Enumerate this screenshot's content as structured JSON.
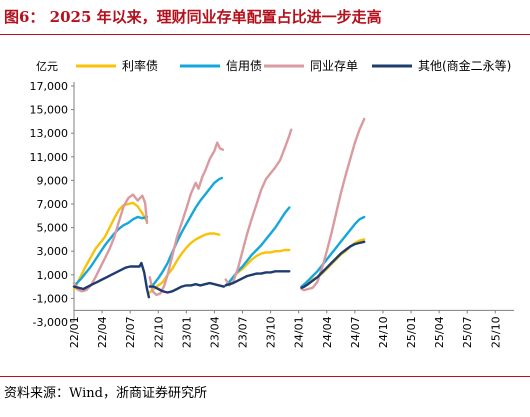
{
  "figure": {
    "title": "图6：  2025 年以来，理财同业存单配置占比进一步走高",
    "source": "资料来源：Wind，浙商证券研究所"
  },
  "chart_data": {
    "type": "line",
    "title": "",
    "ylabel": "亿元",
    "xlabel": "",
    "ylim": [
      -3000,
      17000
    ],
    "y_ticks": [
      "-3,000",
      "-1,000",
      "1,000",
      "3,000",
      "5,000",
      "7,000",
      "9,000",
      "11,000",
      "13,000",
      "15,000",
      "17,000"
    ],
    "x_ticks": [
      "22/01",
      "22/04",
      "22/07",
      "22/10",
      "23/01",
      "23/04",
      "23/07",
      "23/10",
      "24/01",
      "24/04",
      "24/07",
      "24/10",
      "25/01",
      "25/04",
      "25/07",
      "25/10"
    ],
    "x_range": [
      "2022-01",
      "2025-12"
    ],
    "legend_position": "top",
    "grid": false,
    "series": [
      {
        "name": "利率债",
        "color": "#f9c20a",
        "segments": [
          [
            [
              0,
              -200
            ],
            [
              0.3,
              200
            ],
            [
              0.8,
              1000
            ],
            [
              1.3,
              1800
            ],
            [
              1.8,
              2500
            ],
            [
              2.3,
              3200
            ],
            [
              2.8,
              3700
            ],
            [
              3.3,
              4200
            ],
            [
              3.8,
              5000
            ],
            [
              4.3,
              5800
            ],
            [
              4.8,
              6500
            ],
            [
              5.3,
              6900
            ],
            [
              5.8,
              7000
            ],
            [
              6.3,
              7100
            ],
            [
              6.8,
              6800
            ],
            [
              7.3,
              6200
            ],
            [
              7.8,
              5500
            ]
          ],
          [
            [
              8.1,
              -500
            ],
            [
              8.5,
              -200
            ],
            [
              9,
              100
            ],
            [
              9.5,
              400
            ],
            [
              10,
              1000
            ],
            [
              10.5,
              1500
            ],
            [
              11,
              2200
            ],
            [
              11.5,
              2800
            ],
            [
              12,
              3300
            ],
            [
              12.5,
              3700
            ],
            [
              13,
              4000
            ],
            [
              13.5,
              4200
            ],
            [
              14,
              4400
            ],
            [
              14.5,
              4500
            ],
            [
              15,
              4500
            ],
            [
              15.5,
              4400
            ]
          ],
          [
            [
              16.2,
              100
            ],
            [
              16.6,
              400
            ],
            [
              17,
              800
            ],
            [
              17.5,
              1200
            ],
            [
              18,
              1500
            ],
            [
              18.5,
              1900
            ],
            [
              19,
              2300
            ],
            [
              19.5,
              2600
            ],
            [
              20,
              2800
            ],
            [
              20.5,
              2900
            ],
            [
              21,
              2900
            ],
            [
              21.5,
              3000
            ],
            [
              22,
              3000
            ],
            [
              22.5,
              3100
            ],
            [
              23,
              3100
            ]
          ],
          [
            [
              24.3,
              -50
            ],
            [
              24.6,
              100
            ],
            [
              25,
              300
            ],
            [
              25.5,
              600
            ],
            [
              26,
              800
            ],
            [
              26.5,
              1100
            ],
            [
              27,
              1500
            ],
            [
              27.5,
              1900
            ],
            [
              28,
              2300
            ],
            [
              28.5,
              2700
            ],
            [
              29,
              3000
            ],
            [
              29.5,
              3400
            ],
            [
              30,
              3700
            ],
            [
              30.5,
              3900
            ],
            [
              31,
              4000
            ]
          ]
        ]
      },
      {
        "name": "信用债",
        "color": "#14a7dc",
        "segments": [
          [
            [
              0,
              0
            ],
            [
              0.3,
              300
            ],
            [
              0.8,
              700
            ],
            [
              1.3,
              1200
            ],
            [
              1.8,
              1700
            ],
            [
              2.3,
              2300
            ],
            [
              2.8,
              2900
            ],
            [
              3.3,
              3500
            ],
            [
              3.8,
              4000
            ],
            [
              4.3,
              4500
            ],
            [
              4.8,
              4900
            ],
            [
              5.3,
              5200
            ],
            [
              5.8,
              5400
            ],
            [
              6.3,
              5700
            ],
            [
              6.8,
              5900
            ],
            [
              7.3,
              5800
            ],
            [
              7.8,
              5900
            ]
          ],
          [
            [
              8.1,
              0
            ],
            [
              8.5,
              200
            ],
            [
              9,
              700
            ],
            [
              9.5,
              1300
            ],
            [
              10,
              2000
            ],
            [
              10.5,
              2900
            ],
            [
              11,
              3800
            ],
            [
              11.5,
              4600
            ],
            [
              12,
              5300
            ],
            [
              12.5,
              6000
            ],
            [
              13,
              6700
            ],
            [
              13.5,
              7300
            ],
            [
              14,
              7800
            ],
            [
              14.5,
              8300
            ],
            [
              15,
              8800
            ],
            [
              15.5,
              9100
            ],
            [
              15.8,
              9200
            ]
          ],
          [
            [
              16.2,
              100
            ],
            [
              16.6,
              400
            ],
            [
              17,
              800
            ],
            [
              17.5,
              1300
            ],
            [
              18,
              1700
            ],
            [
              18.5,
              2200
            ],
            [
              19,
              2700
            ],
            [
              19.5,
              3100
            ],
            [
              20,
              3500
            ],
            [
              20.5,
              4000
            ],
            [
              21,
              4500
            ],
            [
              21.5,
              5000
            ],
            [
              22,
              5600
            ],
            [
              22.5,
              6200
            ],
            [
              23,
              6700
            ]
          ],
          [
            [
              24.3,
              0
            ],
            [
              24.6,
              200
            ],
            [
              25,
              500
            ],
            [
              25.5,
              900
            ],
            [
              26,
              1300
            ],
            [
              26.5,
              1800
            ],
            [
              27,
              2300
            ],
            [
              27.5,
              2800
            ],
            [
              28,
              3300
            ],
            [
              28.5,
              3800
            ],
            [
              29,
              4300
            ],
            [
              29.5,
              4800
            ],
            [
              30,
              5300
            ],
            [
              30.5,
              5700
            ],
            [
              31,
              5900
            ]
          ]
        ]
      },
      {
        "name": "同业存单",
        "color": "#d99aa0",
        "segments": [
          [
            [
              0,
              300
            ],
            [
              0.3,
              -200
            ],
            [
              0.8,
              -400
            ],
            [
              1.3,
              -300
            ],
            [
              1.8,
              100
            ],
            [
              2.3,
              800
            ],
            [
              2.8,
              1600
            ],
            [
              3.3,
              2400
            ],
            [
              3.8,
              3200
            ],
            [
              4.3,
              4200
            ],
            [
              4.8,
              5500
            ],
            [
              5.3,
              6800
            ],
            [
              5.8,
              7500
            ],
            [
              6.3,
              7800
            ],
            [
              6.8,
              7300
            ],
            [
              7.3,
              7700
            ],
            [
              7.6,
              7100
            ],
            [
              7.8,
              5400
            ]
          ],
          [
            [
              8.1,
              800
            ],
            [
              8.4,
              -400
            ],
            [
              8.8,
              -700
            ],
            [
              9.2,
              -600
            ],
            [
              9.6,
              0
            ],
            [
              10,
              1000
            ],
            [
              10.5,
              2600
            ],
            [
              11,
              4200
            ],
            [
              11.5,
              5400
            ],
            [
              12,
              6600
            ],
            [
              12.5,
              7900
            ],
            [
              13,
              8800
            ],
            [
              13.3,
              8300
            ],
            [
              13.7,
              9300
            ],
            [
              14,
              9800
            ],
            [
              14.5,
              10800
            ],
            [
              15,
              11500
            ],
            [
              15.3,
              12200
            ],
            [
              15.6,
              11700
            ],
            [
              15.9,
              11600
            ]
          ],
          [
            [
              16.2,
              600
            ],
            [
              16.6,
              100
            ],
            [
              17,
              400
            ],
            [
              17.5,
              1500
            ],
            [
              18,
              3000
            ],
            [
              18.5,
              4500
            ],
            [
              19,
              5800
            ],
            [
              19.5,
              7000
            ],
            [
              20,
              8200
            ],
            [
              20.5,
              9100
            ],
            [
              21,
              9600
            ],
            [
              21.5,
              10100
            ],
            [
              22,
              10700
            ],
            [
              22.5,
              11700
            ],
            [
              23,
              12800
            ],
            [
              23.2,
              13300
            ]
          ],
          [
            [
              24.3,
              -200
            ],
            [
              24.6,
              -300
            ],
            [
              25,
              -200
            ],
            [
              25.5,
              -100
            ],
            [
              26,
              400
            ],
            [
              26.5,
              1600
            ],
            [
              27,
              3000
            ],
            [
              27.5,
              4500
            ],
            [
              28,
              6200
            ],
            [
              28.5,
              7900
            ],
            [
              29,
              9400
            ],
            [
              29.5,
              10800
            ],
            [
              30,
              12200
            ],
            [
              30.5,
              13300
            ],
            [
              31,
              14200
            ]
          ]
        ]
      },
      {
        "name": "其他(商金二永等)",
        "color": "#1f3c6f",
        "segments": [
          [
            [
              0,
              0
            ],
            [
              0.5,
              -100
            ],
            [
              1,
              -200
            ],
            [
              1.5,
              0
            ],
            [
              2,
              200
            ],
            [
              2.5,
              400
            ],
            [
              3,
              600
            ],
            [
              3.5,
              800
            ],
            [
              4,
              1000
            ],
            [
              4.5,
              1200
            ],
            [
              5,
              1400
            ],
            [
              5.5,
              1600
            ],
            [
              6,
              1700
            ],
            [
              6.5,
              1700
            ],
            [
              7,
              1700
            ],
            [
              7.2,
              2000
            ],
            [
              7.5,
              1200
            ],
            [
              7.8,
              -200
            ],
            [
              8,
              -900
            ]
          ],
          [
            [
              8.1,
              0
            ],
            [
              8.5,
              0
            ],
            [
              9,
              -200
            ],
            [
              9.5,
              -400
            ],
            [
              10,
              -500
            ],
            [
              10.5,
              -400
            ],
            [
              11,
              -200
            ],
            [
              11.5,
              0
            ],
            [
              12,
              100
            ],
            [
              12.5,
              100
            ],
            [
              13,
              200
            ],
            [
              13.5,
              100
            ],
            [
              14,
              200
            ],
            [
              14.5,
              300
            ],
            [
              15,
              200
            ],
            [
              15.5,
              100
            ],
            [
              16,
              0
            ]
          ],
          [
            [
              16.2,
              100
            ],
            [
              16.6,
              200
            ],
            [
              17,
              300
            ],
            [
              17.5,
              500
            ],
            [
              18,
              700
            ],
            [
              18.5,
              900
            ],
            [
              19,
              1000
            ],
            [
              19.5,
              1100
            ],
            [
              20,
              1100
            ],
            [
              20.5,
              1200
            ],
            [
              21,
              1200
            ],
            [
              21.5,
              1300
            ],
            [
              22,
              1300
            ],
            [
              22.5,
              1300
            ],
            [
              23,
              1300
            ]
          ],
          [
            [
              24.3,
              -100
            ],
            [
              24.6,
              0
            ],
            [
              25,
              200
            ],
            [
              25.5,
              500
            ],
            [
              26,
              800
            ],
            [
              26.5,
              1200
            ],
            [
              27,
              1600
            ],
            [
              27.5,
              2000
            ],
            [
              28,
              2400
            ],
            [
              28.5,
              2800
            ],
            [
              29,
              3100
            ],
            [
              29.5,
              3400
            ],
            [
              30,
              3600
            ],
            [
              30.5,
              3700
            ],
            [
              31,
              3800
            ]
          ]
        ]
      }
    ]
  }
}
